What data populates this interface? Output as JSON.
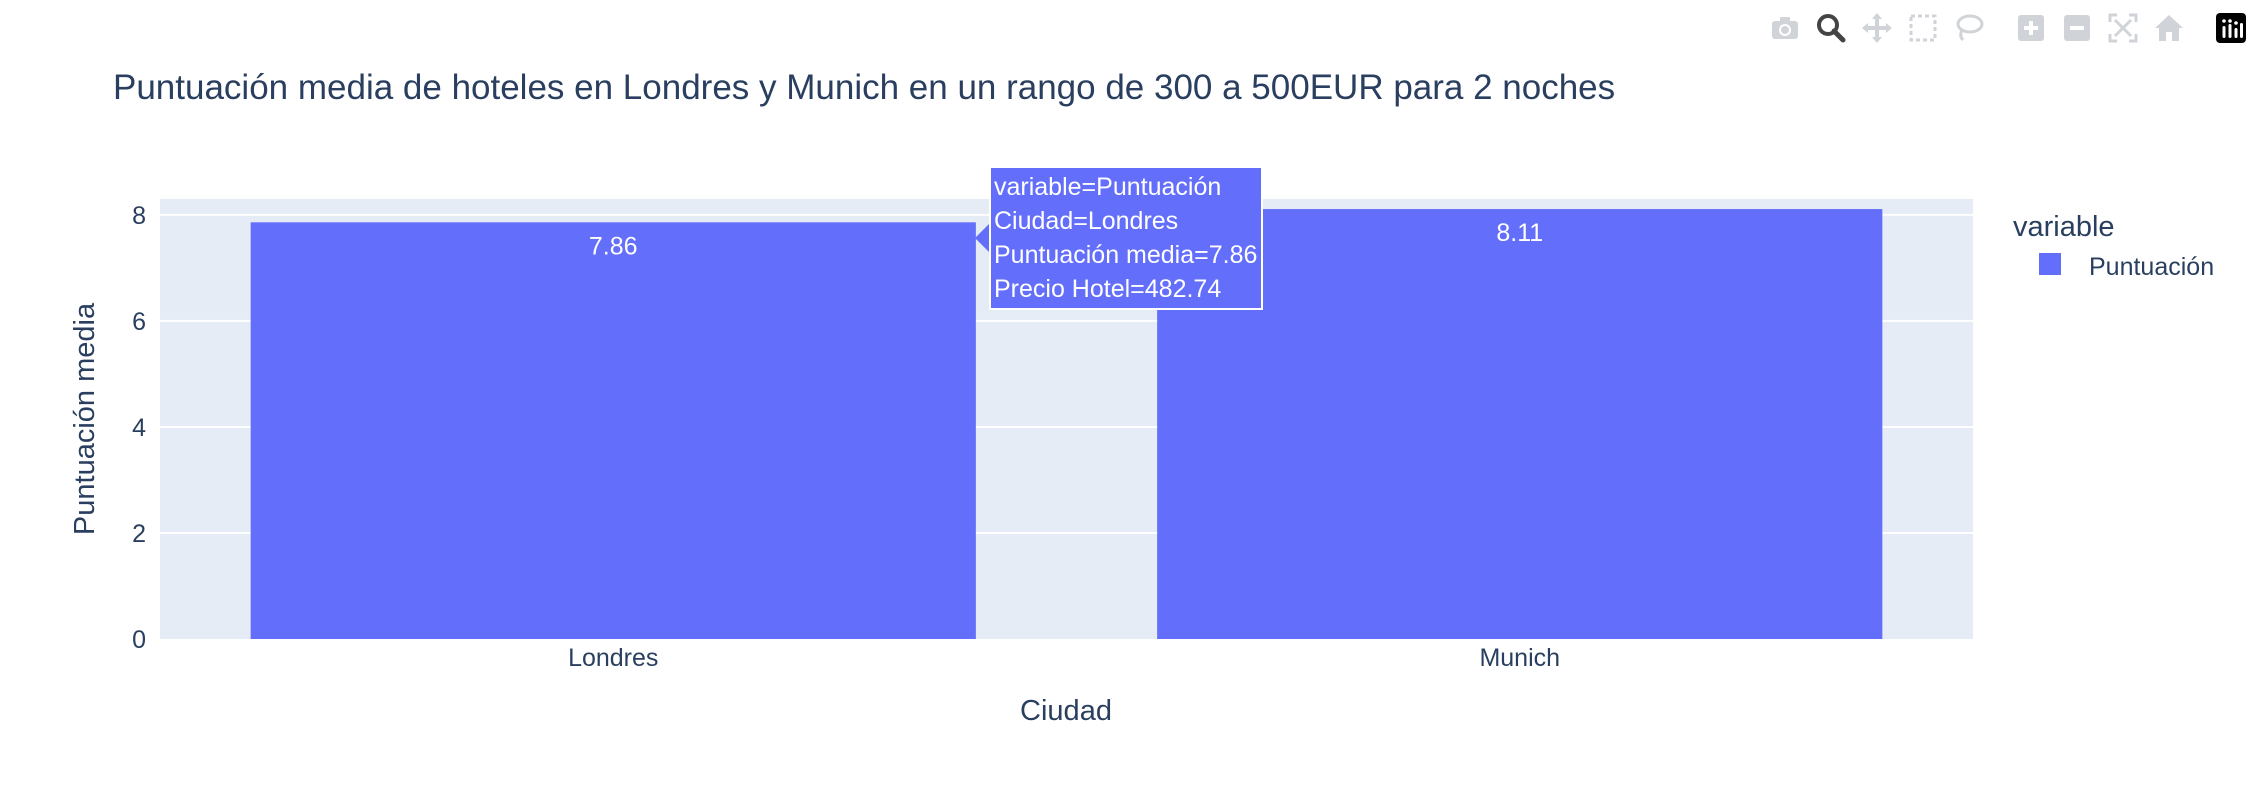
{
  "chart_data": {
    "type": "bar",
    "title": "Puntuación media de hoteles en Londres y Munich en un rango de 300 a 500EUR para 2 noches",
    "xlabel": "Ciudad",
    "ylabel": "Puntuación media",
    "categories": [
      "Londres",
      "Munich"
    ],
    "series": [
      {
        "name": "Puntuación",
        "values": [
          7.86,
          8.11
        ],
        "color": "#636efa"
      }
    ],
    "data_labels": [
      "7.86",
      "8.11"
    ],
    "ylim": [
      0,
      8.3
    ],
    "yticks": [
      0,
      2,
      4,
      6,
      8
    ],
    "grid": true,
    "legend": {
      "title": "variable",
      "placement": "right"
    },
    "background_color": "#e5ecf6"
  },
  "tooltip": {
    "lines": [
      "variable=Puntuación",
      "Ciudad=Londres",
      "Puntuación media=7.86",
      "Precio Hotel=482.74"
    ]
  },
  "modebar": {
    "buttons": [
      "camera-icon",
      "zoom-icon",
      "pan-icon",
      "box-select-icon",
      "lasso-icon",
      "zoom-in-icon",
      "zoom-out-icon",
      "autoscale-icon",
      "home-icon",
      "plotly-logo-icon"
    ]
  }
}
